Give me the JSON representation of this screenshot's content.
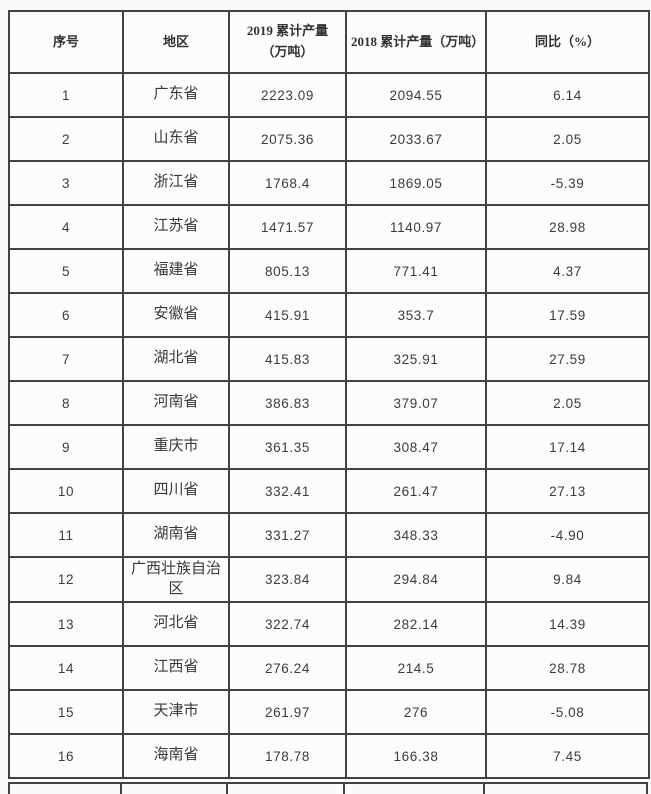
{
  "chart_data": {
    "type": "table",
    "headers": [
      "序号",
      "地区",
      "2019 累计产量（万吨）",
      "2018 累计产量（万吨）",
      "同比（%）"
    ],
    "rows": [
      [
        "1",
        "广东省",
        "2223.09",
        "2094.55",
        "6.14"
      ],
      [
        "2",
        "山东省",
        "2075.36",
        "2033.67",
        "2.05"
      ],
      [
        "3",
        "浙江省",
        "1768.4",
        "1869.05",
        "-5.39"
      ],
      [
        "4",
        "江苏省",
        "1471.57",
        "1140.97",
        "28.98"
      ],
      [
        "5",
        "福建省",
        "805.13",
        "771.41",
        "4.37"
      ],
      [
        "6",
        "安徽省",
        "415.91",
        "353.7",
        "17.59"
      ],
      [
        "7",
        "湖北省",
        "415.83",
        "325.91",
        "27.59"
      ],
      [
        "8",
        "河南省",
        "386.83",
        "379.07",
        "2.05"
      ],
      [
        "9",
        "重庆市",
        "361.35",
        "308.47",
        "17.14"
      ],
      [
        "10",
        "四川省",
        "332.41",
        "261.47",
        "27.13"
      ],
      [
        "11",
        "湖南省",
        "331.27",
        "348.33",
        "-4.90"
      ],
      [
        "12",
        "广西壮族自治区",
        "323.84",
        "294.84",
        "9.84"
      ],
      [
        "13",
        "河北省",
        "322.74",
        "282.14",
        "14.39"
      ],
      [
        "14",
        "江西省",
        "276.24",
        "214.5",
        "28.78"
      ],
      [
        "15",
        "天津市",
        "261.97",
        "276",
        "-5.08"
      ],
      [
        "16",
        "海南省",
        "178.78",
        "166.38",
        "7.45"
      ]
    ]
  }
}
